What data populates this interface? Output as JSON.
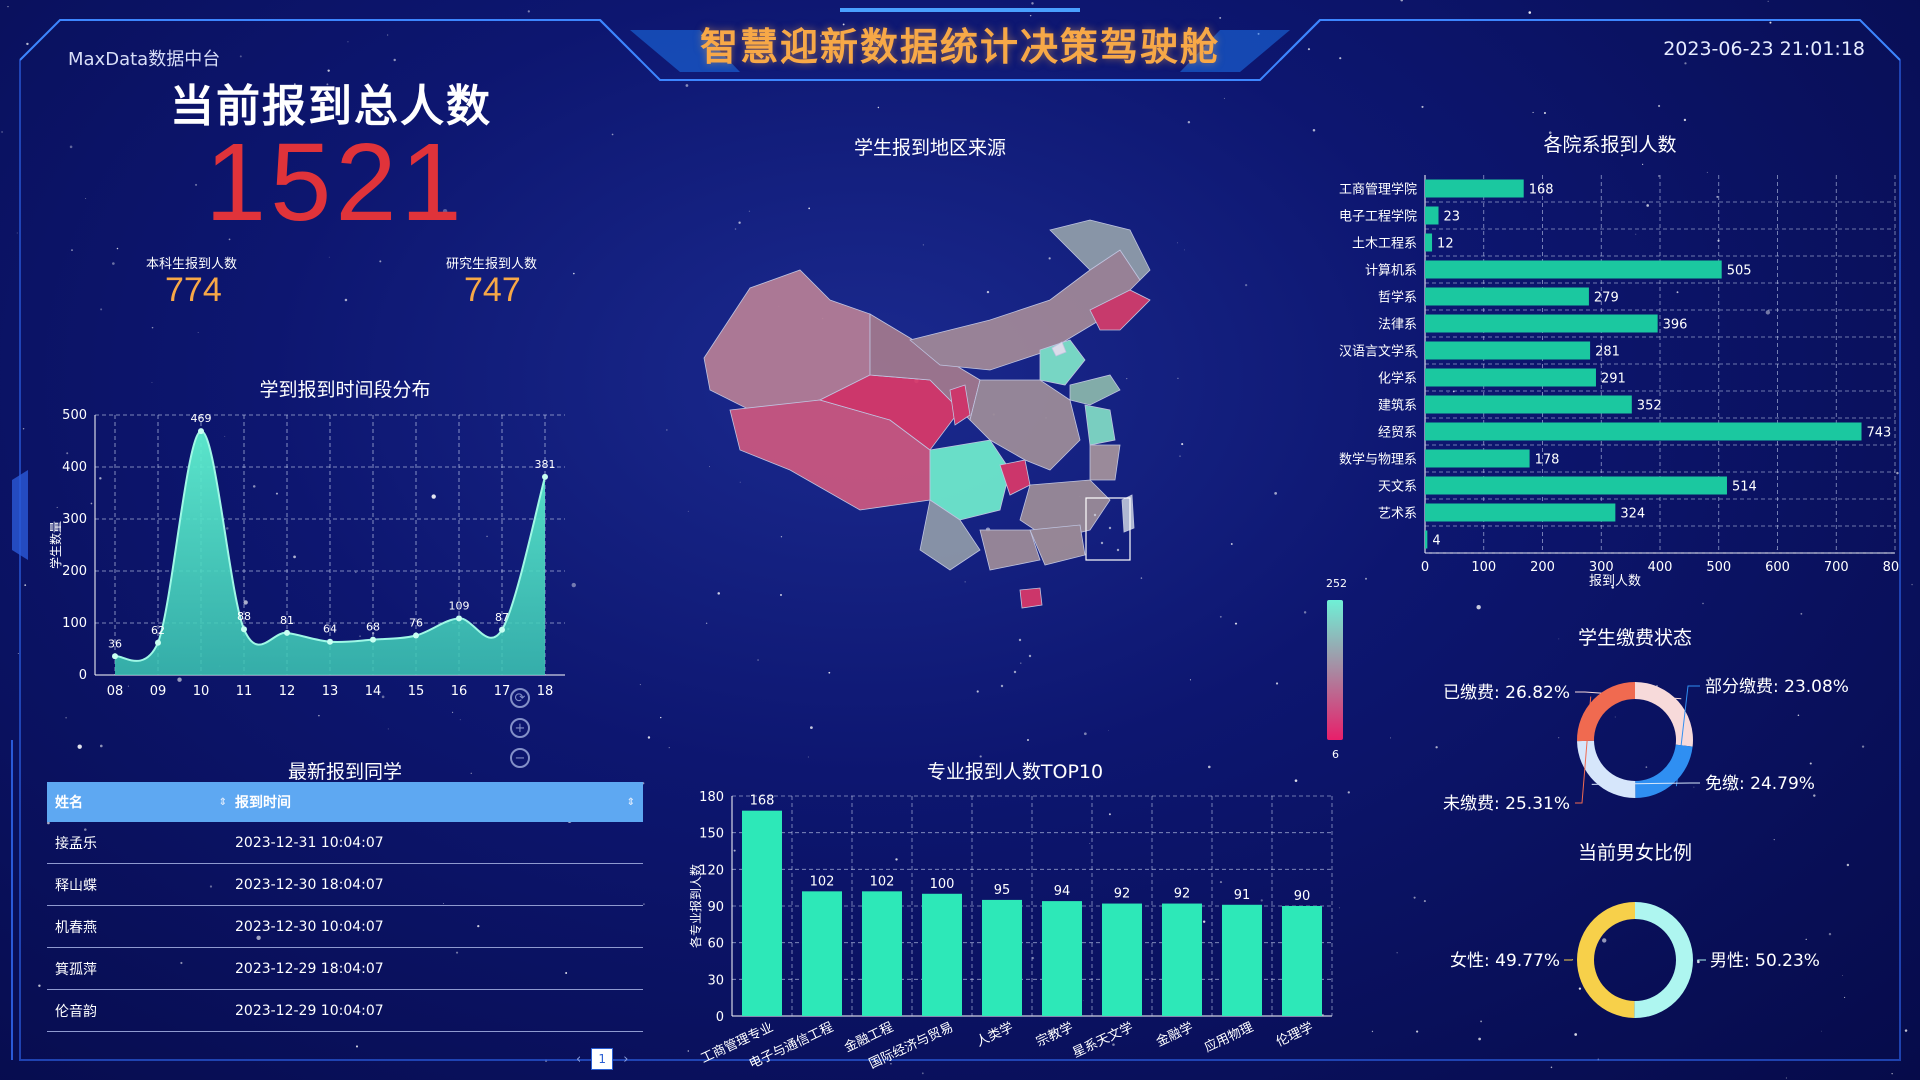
{
  "header": {
    "title": "智慧迎新数据统计决策驾驶舱",
    "datetime": "2023-06-23 21:01:18",
    "brand": "MaxData数据中台"
  },
  "totals": {
    "label": "当前报到总人数",
    "value": "1521",
    "undergrad_label": "本科生报到人数",
    "undergrad_value": "774",
    "grad_label": "研究生报到人数",
    "grad_value": "747"
  },
  "map": {
    "title": "学生报到地区来源",
    "visual_max": "252",
    "visual_min": "6",
    "tool_icons": [
      "refresh-icon",
      "zoom-in-icon",
      "zoom-out-icon"
    ]
  },
  "latest": {
    "title": "最新报到同学",
    "columns": [
      "姓名",
      "报到时间"
    ],
    "rows": [
      {
        "name": "接孟乐",
        "time": "2023-12-31 10:04:07"
      },
      {
        "name": "释山蝶",
        "time": "2023-12-30 18:04:07"
      },
      {
        "name": "机春燕",
        "time": "2023-12-30 10:04:07"
      },
      {
        "name": "箕孤萍",
        "time": "2023-12-29 18:04:07"
      },
      {
        "name": "伦音韵",
        "time": "2023-12-29 10:04:07"
      }
    ],
    "page": "1",
    "prev": "‹",
    "next": "›"
  },
  "colors": {
    "accent": "#f7a847",
    "total": "#e0333a",
    "teal": "#1bc8a0",
    "area": "#5ff0d0",
    "bar_green": "#2de8b8",
    "table_head": "#5ea8f2"
  },
  "chart_data": [
    {
      "type": "area",
      "title": "学到报到时间段分布",
      "ylabel": "学生数量",
      "x": [
        "08",
        "09",
        "10",
        "11",
        "12",
        "13",
        "14",
        "15",
        "16",
        "17",
        "18"
      ],
      "x_values": [
        8,
        9,
        10,
        11,
        12,
        13,
        14,
        15,
        16,
        17,
        18
      ],
      "points_x": [
        8,
        9,
        10,
        11,
        12,
        13,
        14,
        15,
        16,
        17,
        18
      ],
      "values": [
        36,
        62,
        469,
        88,
        81,
        64,
        68,
        76,
        109,
        87,
        381
      ],
      "ylim": [
        0,
        500
      ],
      "yticks": [
        0,
        100,
        200,
        300,
        400,
        500
      ],
      "grid": true
    },
    {
      "type": "bar",
      "orientation": "horizontal",
      "title": "各院系报到人数",
      "xlabel": "报到人数",
      "categories": [
        "工商管理学院",
        "电子工程学院",
        "土木工程系",
        "计算机系",
        "哲学系",
        "法律系",
        "汉语言文学系",
        "化学系",
        "建筑系",
        "经贸系",
        "数学与物理系",
        "天文系",
        "艺术系",
        ""
      ],
      "values": [
        168,
        23,
        12,
        505,
        279,
        396,
        281,
        291,
        352,
        743,
        178,
        514,
        324,
        4
      ],
      "xlim": [
        0,
        800
      ],
      "xticks": [
        0,
        100,
        200,
        300,
        400,
        500,
        600,
        700,
        800
      ],
      "grid": true
    },
    {
      "type": "bar",
      "title": "专业报到人数TOP10",
      "ylabel": "各专业报到人数",
      "categories": [
        "工商管理专业",
        "电子与通信工程",
        "金融工程",
        "国际经济与贸易",
        "人类学",
        "宗教学",
        "星系天文学",
        "金融学",
        "应用物理",
        "伦理学"
      ],
      "values": [
        168,
        102,
        102,
        100,
        95,
        94,
        92,
        92,
        91,
        90
      ],
      "ylim": [
        0,
        180
      ],
      "yticks": [
        0,
        30,
        60,
        90,
        120,
        150,
        180
      ],
      "grid": true
    },
    {
      "type": "pie",
      "title": "学生缴费状态",
      "labels": [
        "已缴费",
        "部分缴费",
        "免缴",
        "未缴费"
      ],
      "values": [
        26.82,
        23.08,
        24.79,
        25.31
      ],
      "display": [
        "已缴费: 26.82%",
        "部分缴费: 23.08%",
        "免缴: 24.79%",
        "未缴费: 25.31%"
      ],
      "colors": [
        "#f7dada",
        "#2f8ff2",
        "#d6e6fb",
        "#f06a50"
      ]
    },
    {
      "type": "pie",
      "title": "当前男女比例",
      "labels": [
        "男性",
        "女性"
      ],
      "values": [
        50.23,
        49.77
      ],
      "display": [
        "男性: 50.23%",
        "女性: 49.77%"
      ],
      "colors": [
        "#aef6f0",
        "#f7d04a"
      ]
    }
  ]
}
